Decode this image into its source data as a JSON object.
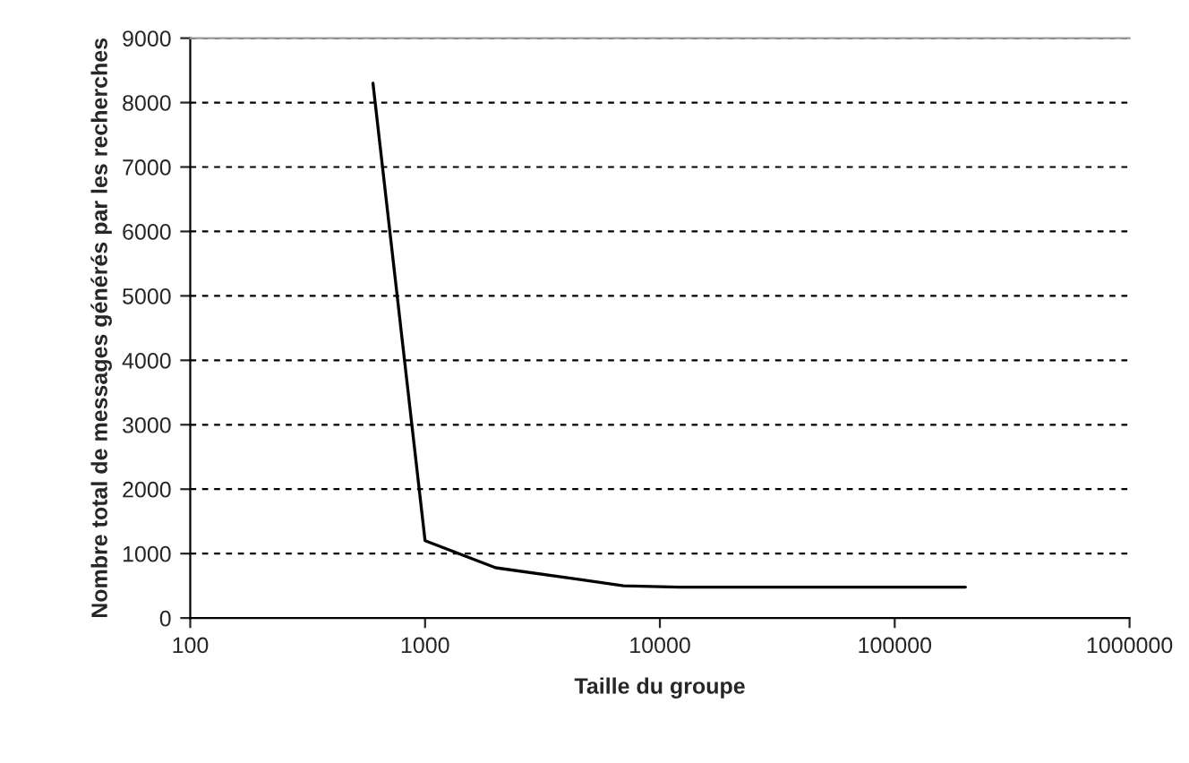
{
  "chart_data": {
    "type": "line",
    "xlabel": "Taille du groupe",
    "ylabel": "Nombre total de messages générés par les recherches",
    "x": [
      600,
      1000,
      2000,
      4500,
      7000,
      12000,
      200000
    ],
    "series": [
      {
        "color": "#000000",
        "values": [
          8300,
          1200,
          780,
          600,
          500,
          480,
          480
        ]
      }
    ],
    "log": "x",
    "xlim": [
      100,
      1000000
    ],
    "xticks": [
      100,
      1000,
      10000,
      100000,
      1000000
    ],
    "ylim": [
      0,
      9000
    ],
    "yticks": [
      0,
      1000,
      2000,
      3000,
      4000,
      5000,
      6000,
      7000,
      8000,
      9000
    ],
    "grid": "y",
    "marker": "none",
    "line_style": "solid"
  }
}
